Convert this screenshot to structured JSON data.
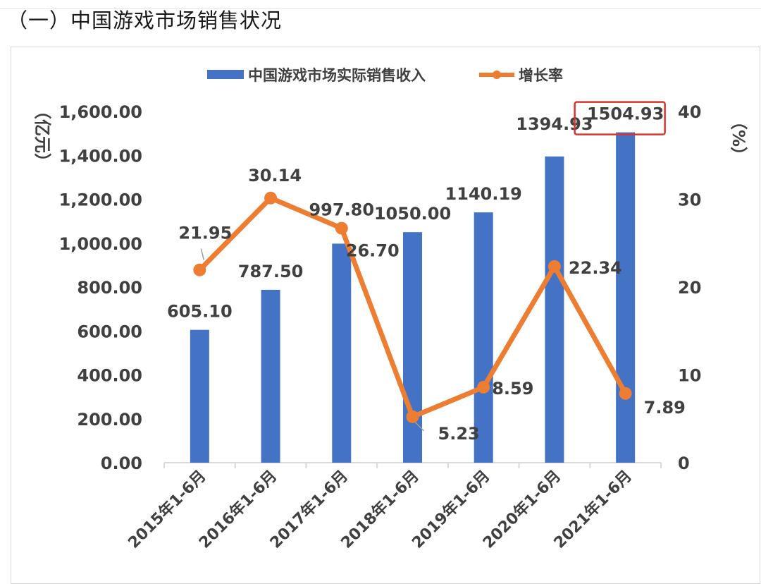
{
  "header": {
    "title": "（一）中国游戏市场销售状况"
  },
  "chart_data": {
    "type": "bar",
    "categories": [
      "2015年1-6月",
      "2016年1-6月",
      "2017年1-6月",
      "2018年1-6月",
      "2019年1-6月",
      "2020年1-6月",
      "2021年1-6月"
    ],
    "series": [
      {
        "name": "中国游戏市场实际销售收入",
        "type": "bar",
        "axis": "left",
        "values": [
          605.1,
          787.5,
          997.8,
          1050.0,
          1140.19,
          1394.93,
          1504.93
        ],
        "labels": [
          "605.10",
          "787.50",
          "997.80",
          "1050.00",
          "1140.19",
          "1394.93",
          "1504.93"
        ]
      },
      {
        "name": "增长率",
        "type": "line",
        "axis": "right",
        "values": [
          21.95,
          30.14,
          26.7,
          5.23,
          8.59,
          22.34,
          7.89
        ],
        "labels": [
          "21.95",
          "30.14",
          "26.70",
          "5.23",
          "8.59",
          "22.34",
          "7.89"
        ]
      }
    ],
    "y_left": {
      "label": "（亿元）",
      "ylim": [
        0,
        1600
      ],
      "ticks": [
        "0.00",
        "200.00",
        "400.00",
        "600.00",
        "800.00",
        "1,000.00",
        "1,200.00",
        "1,400.00",
        "1,600.00"
      ]
    },
    "y_right": {
      "label": "（%）",
      "ylim": [
        0,
        40
      ],
      "ticks": [
        "0",
        "10",
        "20",
        "30",
        "40"
      ]
    },
    "legend": "top",
    "grid": false,
    "highlight": {
      "label": "1504.93",
      "color": "#d9342b"
    },
    "colors": {
      "bar": "#4472c4",
      "line": "#ed7d31",
      "text": "#404040",
      "axis": "#d9d9d9"
    }
  }
}
